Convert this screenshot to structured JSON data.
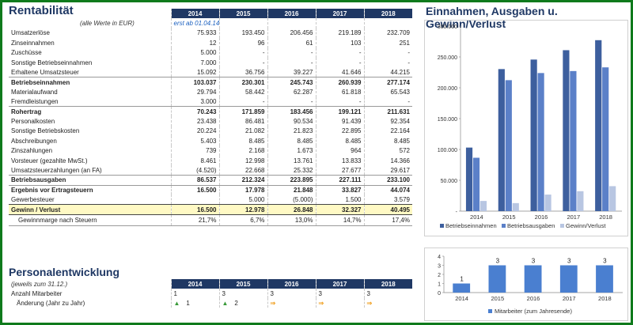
{
  "titles": {
    "rentabilitaet": "Rentabilität",
    "personal": "Personalentwicklung",
    "chart1": "Einnahmen, Ausgaben u. Gewinn/Verlust"
  },
  "fin": {
    "years": [
      "2014",
      "2015",
      "2016",
      "2017",
      "2018"
    ],
    "units_note": "(alle Werte in EUR)",
    "start_note": "erst ab 01.04.14",
    "rows": [
      {
        "label": "Umsatzerlöse",
        "values": [
          "75.933",
          "193.450",
          "206.456",
          "219.189",
          "232.709"
        ],
        "style": ""
      },
      {
        "label": "Zinseinnahmen",
        "values": [
          "12",
          "96",
          "61",
          "103",
          "251"
        ],
        "style": ""
      },
      {
        "label": "Zuschüsse",
        "values": [
          "5.000",
          "-",
          "-",
          "-",
          "-"
        ],
        "style": ""
      },
      {
        "label": "Sonstige Betriebseinnahmen",
        "values": [
          "7.000",
          "-",
          "-",
          "-",
          "-"
        ],
        "style": ""
      },
      {
        "label": "Erhaltene Umsatzsteuer",
        "values": [
          "15.092",
          "36.756",
          "39.227",
          "41.646",
          "44.215"
        ],
        "style": "uline"
      },
      {
        "label": "Betriebseinnahmen",
        "values": [
          "103.037",
          "230.301",
          "245.743",
          "260.939",
          "277.174"
        ],
        "style": "bold"
      },
      {
        "label": "Materialaufwand",
        "values": [
          "29.794",
          "58.442",
          "62.287",
          "61.818",
          "65.543"
        ],
        "style": ""
      },
      {
        "label": "Fremdleistungen",
        "values": [
          "3.000",
          "-",
          "-",
          "-",
          "-"
        ],
        "style": "uline"
      },
      {
        "label": "Rohertrag",
        "values": [
          "70.243",
          "171.859",
          "183.456",
          "199.121",
          "211.631"
        ],
        "style": "bold"
      },
      {
        "label": "Personalkosten",
        "values": [
          "23.438",
          "86.481",
          "90.534",
          "91.439",
          "92.354"
        ],
        "style": ""
      },
      {
        "label": "Sonstige Betriebskosten",
        "values": [
          "20.224",
          "21.082",
          "21.823",
          "22.895",
          "22.164"
        ],
        "style": ""
      },
      {
        "label": "Abschreibungen",
        "values": [
          "5.403",
          "8.485",
          "8.485",
          "8.485",
          "8.485"
        ],
        "style": ""
      },
      {
        "label": "Zinszahlungen",
        "values": [
          "739",
          "2.168",
          "1.673",
          "964",
          "572"
        ],
        "style": ""
      },
      {
        "label": "Vorsteuer (gezahlte MwSt.)",
        "values": [
          "8.461",
          "12.998",
          "13.761",
          "13.833",
          "14.366"
        ],
        "style": ""
      },
      {
        "label": "Umsatzsteuerzahlungen (an FA)",
        "values": [
          "(4.520)",
          "22.668",
          "25.332",
          "27.677",
          "29.617"
        ],
        "style": "uline"
      },
      {
        "label": "Betriebsausgaben",
        "values": [
          "86.537",
          "212.324",
          "223.895",
          "227.111",
          "233.100"
        ],
        "style": "bold uline"
      },
      {
        "label": "Ergebnis vor Ertragsteuern",
        "values": [
          "16.500",
          "17.978",
          "21.848",
          "33.827",
          "44.074"
        ],
        "style": "bold"
      },
      {
        "label": "Gewerbesteuer",
        "values": [
          "",
          "5.000",
          "(5.000)",
          "1.500",
          "3.579"
        ],
        "style": ""
      },
      {
        "label": "Gewinn / Verlust",
        "values": [
          "16.500",
          "12.978",
          "26.848",
          "32.327",
          "40.495"
        ],
        "style": "gewinn"
      },
      {
        "label": "Gewinnmarge nach Steuern",
        "values": [
          "21,7%",
          "6,7%",
          "13,0%",
          "14,7%",
          "17,4%"
        ],
        "style": "marge"
      }
    ]
  },
  "personal": {
    "subtitle": "(jeweils zum 31.12.)",
    "years": [
      "2014",
      "2015",
      "2016",
      "2017",
      "2018"
    ],
    "row_mitarbeiter": {
      "label": "Anzahl Mitarbeiter",
      "values": [
        "1",
        "3",
        "3",
        "3",
        "3"
      ]
    },
    "row_aenderung": {
      "label": "Änderung (Jahr zu Jahr)",
      "values": [
        "1",
        "2",
        "",
        "",
        ""
      ],
      "arrows": [
        "up",
        "up",
        "right",
        "right",
        "right"
      ]
    }
  },
  "chart_data": [
    {
      "type": "bar",
      "title": "Einnahmen, Ausgaben u. Gewinn/Verlust",
      "categories": [
        "2014",
        "2015",
        "2016",
        "2017",
        "2018"
      ],
      "series": [
        {
          "name": "Betriebseinnahmen",
          "values": [
            103037,
            230301,
            245743,
            260939,
            277174
          ],
          "color": "#3d5f9e"
        },
        {
          "name": "Betriebsausgaben",
          "values": [
            86537,
            212324,
            223895,
            227111,
            233100
          ],
          "color": "#5b80c8"
        },
        {
          "name": "Gewinn/Verlust",
          "values": [
            16500,
            12978,
            26848,
            32327,
            40495
          ],
          "color": "#b8c6e2"
        }
      ],
      "ylim": [
        0,
        300000
      ],
      "yticks": [
        "-",
        "50.000",
        "100.000",
        "150.000",
        "200.000",
        "250.000",
        "300.000"
      ],
      "legend": "bottom",
      "grid": false
    },
    {
      "type": "bar",
      "categories": [
        "2014",
        "2015",
        "2016",
        "2017",
        "2018"
      ],
      "series": [
        {
          "name": "Mitarbeiter (zum Jahresende)",
          "values": [
            1,
            3,
            3,
            3,
            3
          ],
          "color": "#4a7fd0"
        }
      ],
      "data_labels": [
        "1",
        "3",
        "3",
        "3",
        "3"
      ],
      "ylim": [
        0,
        4
      ],
      "yticks": [
        "0",
        "1",
        "2",
        "3",
        "4"
      ],
      "legend": "bottom"
    }
  ]
}
